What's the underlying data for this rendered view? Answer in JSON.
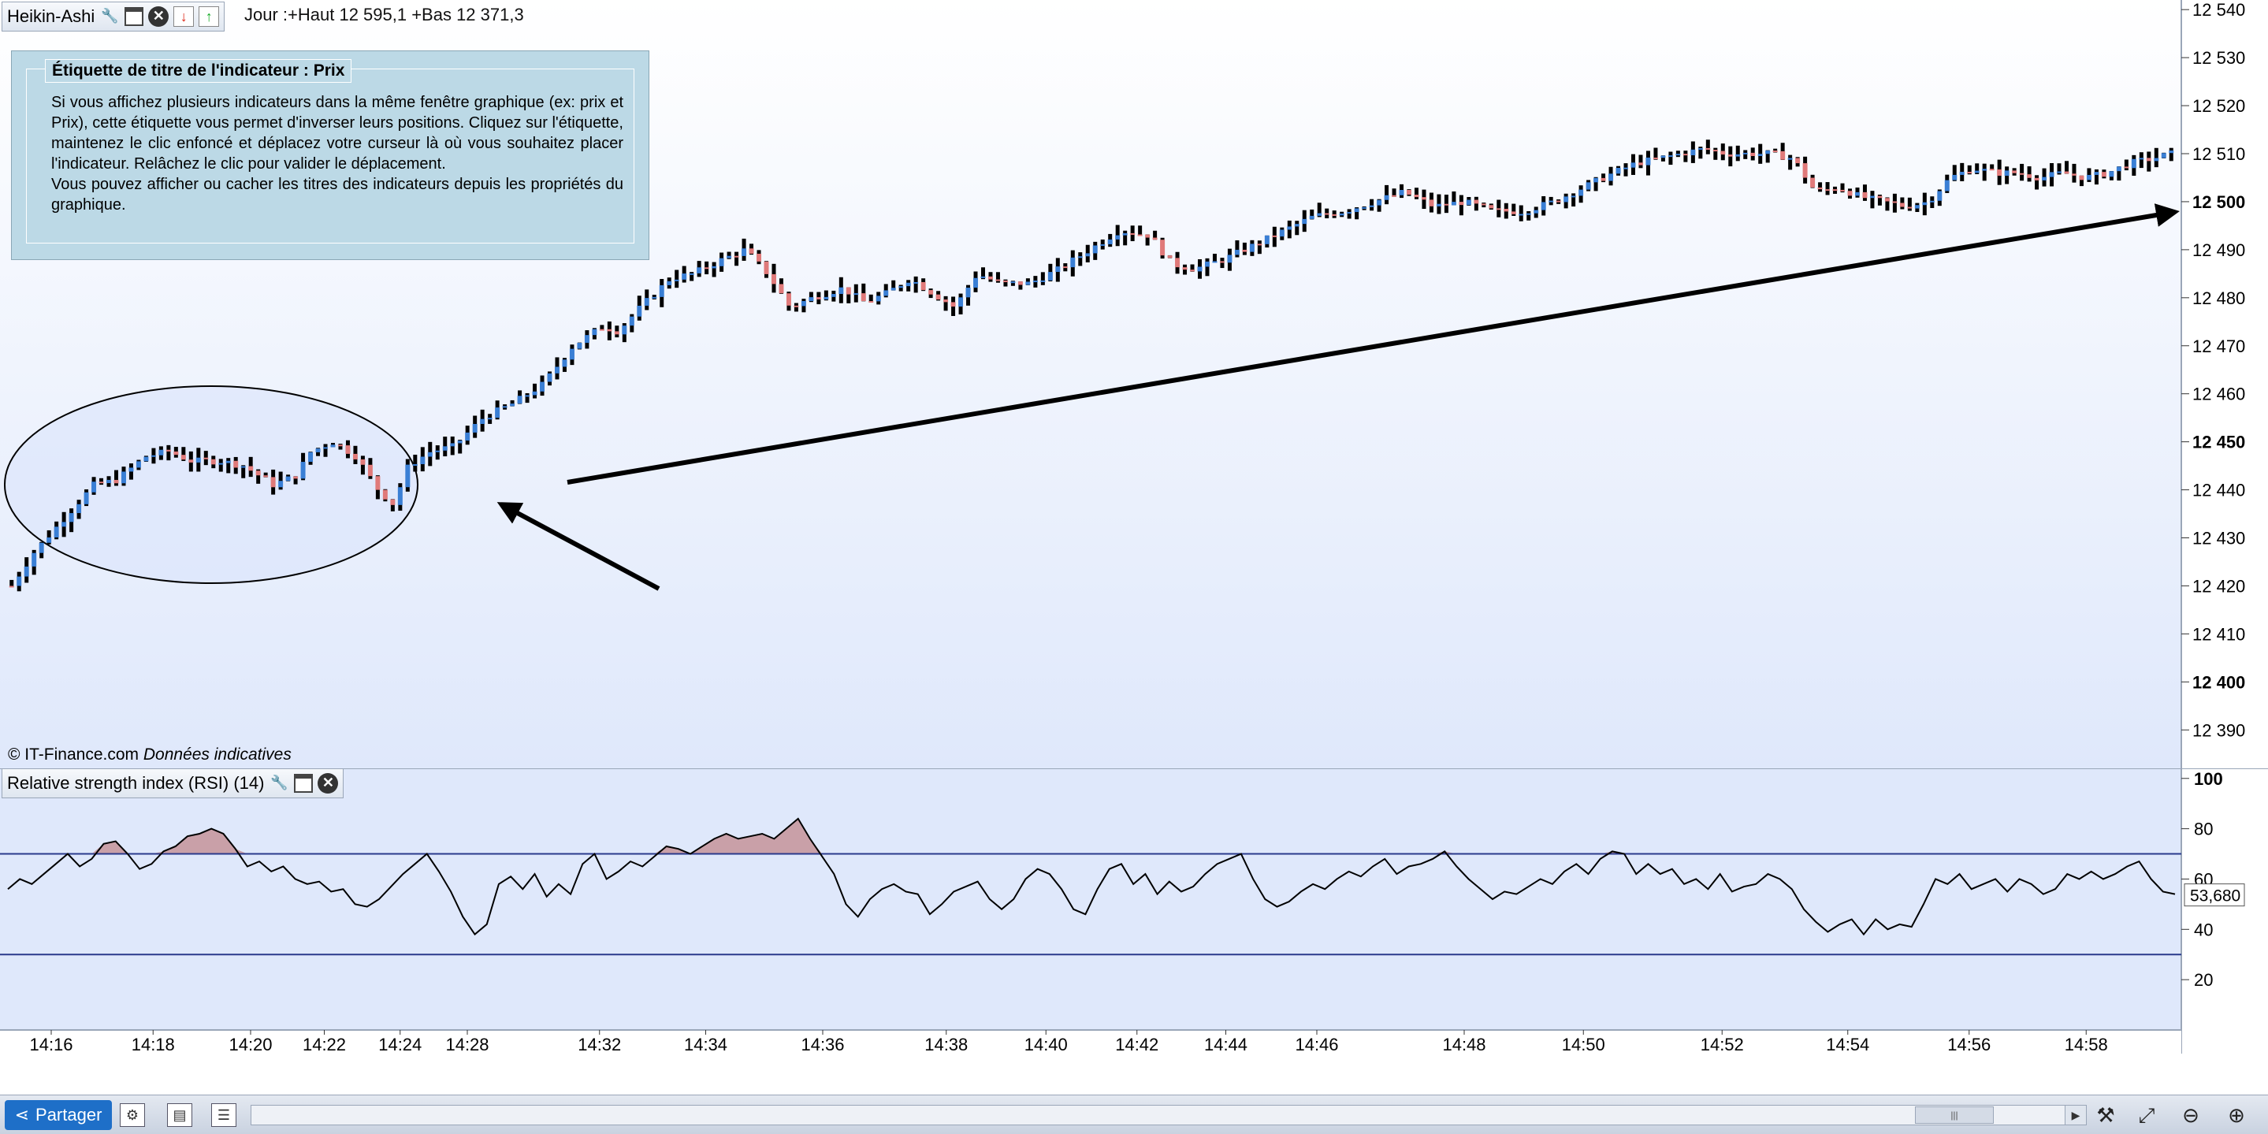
{
  "price_pane": {
    "indicator_name": "Heikin-Ashi",
    "day_info": "Jour :+Haut 12 595,1 +Bas 12 371,3",
    "copyright": "© IT-Finance.com",
    "copyright_note": "Données indicatives",
    "tooltip": {
      "title": "Étiquette de titre de l'indicateur : Prix",
      "lines": [
        "Si vous affichez plusieurs indicateurs dans la même fenêtre graphique (ex: prix et Prix), cette étiquette vous permet d'inverser leurs positions. Cliquez sur l'étiquette, maintenez le clic enfoncé et déplacez votre curseur là où vous souhaitez placer l'indicateur. Relâchez le clic pour valider le déplacement.",
        "Vous pouvez afficher ou cacher les titres des indicateurs depuis les propriétés du graphique."
      ]
    }
  },
  "rsi_pane": {
    "title": "Relative strength index (RSI) (14)",
    "current_value_label": "53,680"
  },
  "colors": {
    "up_candle": "#3a7fd5",
    "down_candle": "#e07a7a",
    "wick": "#000000",
    "rsi_fill": "#c9a0a8",
    "band_line": "#2a3a8c",
    "background_top": "#ffffff",
    "background_bottom": "#dfe8fb"
  },
  "bottom_bar": {
    "share_label": "Partager"
  },
  "chart_data": [
    {
      "type": "candlestick",
      "title": "Heikin-Ashi",
      "ylim": [
        12382,
        12542
      ],
      "y_ticks": [
        {
          "label": "12 540",
          "value": 12540,
          "bold": false
        },
        {
          "label": "12 530",
          "value": 12530,
          "bold": false
        },
        {
          "label": "12 520",
          "value": 12520,
          "bold": false
        },
        {
          "label": "12 510",
          "value": 12510,
          "bold": false
        },
        {
          "label": "12 500",
          "value": 12500,
          "bold": true
        },
        {
          "label": "12 490",
          "value": 12490,
          "bold": false
        },
        {
          "label": "12 480",
          "value": 12480,
          "bold": false
        },
        {
          "label": "12 470",
          "value": 12470,
          "bold": false
        },
        {
          "label": "12 460",
          "value": 12460,
          "bold": false
        },
        {
          "label": "12 450",
          "value": 12450,
          "bold": true
        },
        {
          "label": "12 440",
          "value": 12440,
          "bold": false
        },
        {
          "label": "12 430",
          "value": 12430,
          "bold": false
        },
        {
          "label": "12 420",
          "value": 12420,
          "bold": false
        },
        {
          "label": "12 410",
          "value": 12410,
          "bold": false
        },
        {
          "label": "12 400",
          "value": 12400,
          "bold": true
        },
        {
          "label": "12 390",
          "value": 12390,
          "bold": false
        }
      ],
      "close_path": [
        [
          0,
          12420
        ],
        [
          6,
          12427
        ],
        [
          14,
          12434
        ],
        [
          22,
          12441
        ],
        [
          28,
          12442
        ],
        [
          36,
          12447
        ],
        [
          42,
          12448
        ],
        [
          48,
          12446
        ],
        [
          56,
          12446
        ],
        [
          62,
          12445
        ],
        [
          70,
          12441
        ],
        [
          76,
          12443
        ],
        [
          80,
          12448
        ],
        [
          86,
          12450
        ],
        [
          92,
          12447
        ],
        [
          98,
          12440
        ],
        [
          102,
          12437
        ],
        [
          106,
          12445
        ],
        [
          112,
          12448
        ],
        [
          118,
          12449
        ],
        [
          126,
          12455
        ],
        [
          134,
          12458
        ],
        [
          142,
          12462
        ],
        [
          150,
          12470
        ],
        [
          158,
          12474
        ],
        [
          162,
          12473
        ],
        [
          168,
          12478
        ],
        [
          176,
          12484
        ],
        [
          182,
          12485
        ],
        [
          190,
          12488
        ],
        [
          196,
          12490
        ],
        [
          202,
          12485
        ],
        [
          208,
          12478
        ],
        [
          214,
          12480
        ],
        [
          222,
          12482
        ],
        [
          228,
          12479
        ],
        [
          234,
          12481
        ],
        [
          240,
          12484
        ],
        [
          246,
          12481
        ],
        [
          252,
          12478
        ],
        [
          258,
          12485
        ],
        [
          264,
          12483
        ],
        [
          272,
          12483
        ],
        [
          280,
          12486
        ],
        [
          288,
          12490
        ],
        [
          296,
          12494
        ],
        [
          304,
          12493
        ],
        [
          310,
          12487
        ],
        [
          316,
          12486
        ],
        [
          324,
          12488
        ],
        [
          332,
          12491
        ],
        [
          340,
          12494
        ],
        [
          348,
          12497
        ],
        [
          356,
          12498
        ],
        [
          364,
          12500
        ],
        [
          372,
          12502
        ],
        [
          380,
          12499
        ],
        [
          388,
          12500
        ],
        [
          396,
          12498
        ],
        [
          404,
          12498
        ],
        [
          412,
          12500
        ],
        [
          420,
          12503
        ],
        [
          428,
          12506
        ],
        [
          434,
          12508
        ],
        [
          440,
          12509
        ],
        [
          446,
          12510
        ],
        [
          452,
          12511
        ],
        [
          458,
          12510
        ],
        [
          464,
          12510
        ],
        [
          470,
          12510
        ],
        [
          476,
          12509
        ],
        [
          482,
          12502
        ],
        [
          488,
          12503
        ],
        [
          494,
          12501
        ],
        [
          500,
          12500
        ],
        [
          506,
          12499
        ],
        [
          512,
          12500
        ],
        [
          518,
          12505
        ],
        [
          524,
          12507
        ],
        [
          530,
          12506
        ],
        [
          536,
          12506
        ],
        [
          542,
          12505
        ],
        [
          548,
          12506
        ],
        [
          554,
          12505
        ],
        [
          560,
          12506
        ],
        [
          566,
          12508
        ],
        [
          572,
          12509
        ],
        [
          577,
          12510
        ]
      ],
      "candle_count": 290
    },
    {
      "type": "line",
      "title": "Relative strength index (RSI) (14)",
      "ylim": [
        0,
        104
      ],
      "y_ticks": [
        {
          "label": "100",
          "value": 100,
          "bold": true
        },
        {
          "label": "80",
          "value": 80,
          "bold": false
        },
        {
          "label": "60",
          "value": 60,
          "bold": false
        },
        {
          "label": "40",
          "value": 40,
          "bold": false
        },
        {
          "label": "20",
          "value": 20,
          "bold": false
        }
      ],
      "overbought": 70,
      "oversold": 30,
      "last_value": 53.68,
      "values": [
        56,
        60,
        58,
        62,
        66,
        70,
        65,
        68,
        74,
        75,
        70,
        64,
        66,
        71,
        73,
        77,
        78,
        80,
        78,
        72,
        65,
        67,
        63,
        65,
        60,
        58,
        59,
        55,
        56,
        50,
        49,
        52,
        57,
        62,
        66,
        70,
        63,
        55,
        45,
        38,
        42,
        58,
        61,
        56,
        62,
        53,
        58,
        54,
        66,
        70,
        60,
        63,
        67,
        65,
        69,
        73,
        72,
        70,
        73,
        76,
        78,
        76,
        77,
        78,
        76,
        80,
        84,
        76,
        69,
        62,
        50,
        45,
        52,
        56,
        58,
        55,
        54,
        46,
        50,
        55,
        57,
        59,
        52,
        48,
        52,
        60,
        64,
        62,
        56,
        48,
        46,
        56,
        64,
        66,
        58,
        62,
        54,
        59,
        55,
        57,
        62,
        66,
        68,
        70,
        60,
        52,
        49,
        51,
        55,
        58,
        56,
        60,
        63,
        61,
        65,
        68,
        62,
        65,
        66,
        68,
        71,
        65,
        60,
        56,
        52,
        55,
        54,
        57,
        60,
        58,
        63,
        66,
        62,
        68,
        71,
        70,
        62,
        66,
        62,
        64,
        58,
        60,
        56,
        62,
        55,
        57,
        58,
        62,
        60,
        56,
        48,
        43,
        39,
        42,
        44,
        38,
        44,
        40,
        42,
        41,
        50,
        60,
        58,
        62,
        56,
        58,
        60,
        55,
        60,
        58,
        54,
        56,
        62,
        60,
        63,
        60,
        62,
        65,
        67,
        60,
        55,
        54
      ]
    }
  ],
  "x_axis": {
    "tick_labels": [
      {
        "label": "14:16",
        "pos": 0.02
      },
      {
        "label": "14:18",
        "pos": 0.067
      },
      {
        "label": "14:20",
        "pos": 0.112
      },
      {
        "label": "14:22",
        "pos": 0.146
      },
      {
        "label": "14:24",
        "pos": 0.181
      },
      {
        "label": "14:28",
        "pos": 0.212
      },
      {
        "label": "14:32",
        "pos": 0.273
      },
      {
        "label": "14:34",
        "pos": 0.322
      },
      {
        "label": "14:36",
        "pos": 0.376
      },
      {
        "label": "14:38",
        "pos": 0.433
      },
      {
        "label": "14:40",
        "pos": 0.479
      },
      {
        "label": "14:42",
        "pos": 0.521
      },
      {
        "label": "14:44",
        "pos": 0.562
      },
      {
        "label": "14:46",
        "pos": 0.604
      },
      {
        "label": "14:48",
        "pos": 0.672
      },
      {
        "label": "14:50",
        "pos": 0.727
      },
      {
        "label": "14:52",
        "pos": 0.791
      },
      {
        "label": "14:54",
        "pos": 0.849
      },
      {
        "label": "14:56",
        "pos": 0.905
      },
      {
        "label": "14:58",
        "pos": 0.959
      }
    ]
  }
}
